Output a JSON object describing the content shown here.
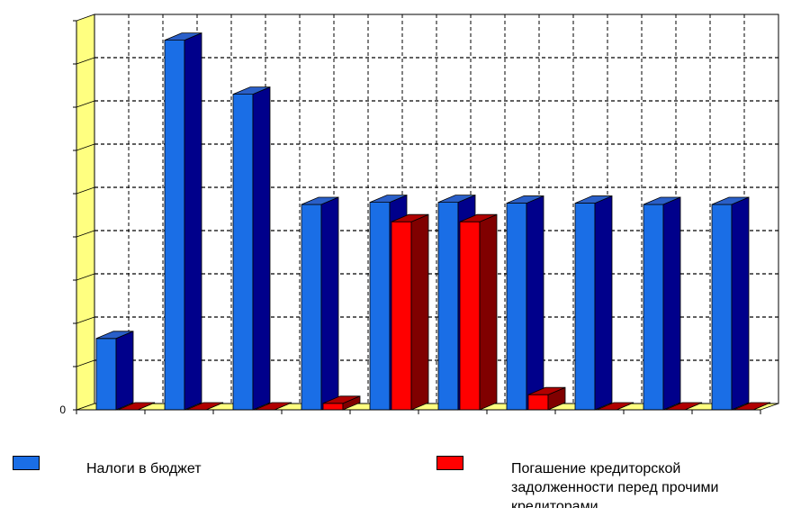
{
  "chart_data": {
    "type": "bar",
    "categories": [
      "",
      "",
      "",
      "",
      "",
      "",
      "",
      "",
      "",
      ""
    ],
    "series": [
      {
        "name": "Налоги в бюджет",
        "color": "#1a6ee6",
        "values": [
          1.65,
          8.55,
          7.3,
          4.75,
          4.8,
          4.8,
          4.78,
          4.78,
          4.75,
          4.75
        ]
      },
      {
        "name": "Погашение кредиторской задолженности перед прочими кредиторами",
        "color": "#ff0000",
        "values": [
          0,
          0,
          0,
          0.15,
          4.35,
          4.35,
          0.35,
          0,
          0,
          0
        ]
      }
    ],
    "y_tick_labels": [
      "0"
    ],
    "ylim": [
      0,
      9
    ],
    "grid": true,
    "legend": "bottom"
  },
  "legend": {
    "items": [
      {
        "label": "Налоги в бюджет",
        "color": "#1a6ee6"
      },
      {
        "label": "Погашение кредиторской задолженности перед прочими кредиторами",
        "color": "#ff0000"
      }
    ]
  }
}
